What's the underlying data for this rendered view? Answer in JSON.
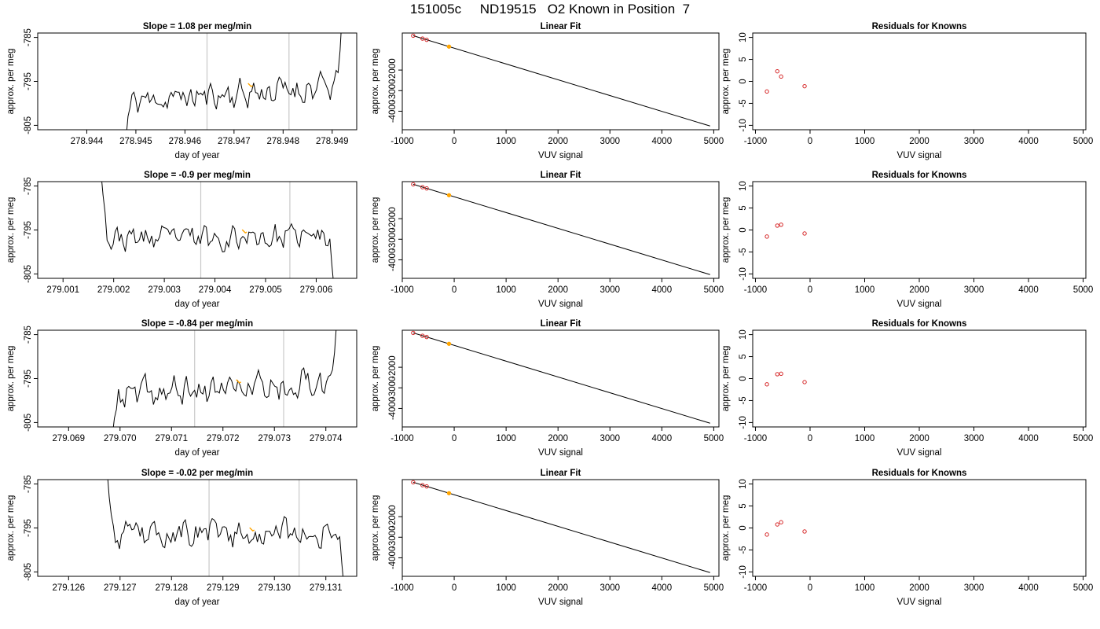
{
  "page": {
    "title": "151005c     ND19515   O2 Known in Position  7"
  },
  "colors": {
    "trace": "#000000",
    "marker": "#ffa500",
    "vline": "#c8c8c8",
    "residual": "#d62728",
    "fit_line": "#000000"
  },
  "chart_data": [
    {
      "id": "row1-timeseries",
      "type": "line",
      "title": "Slope =  1.08  per meg/min",
      "xlabel": "day of year",
      "ylabel": "approx. per meg",
      "xlim": [
        278.943,
        278.9495
      ],
      "ylim": [
        -806,
        -784
      ],
      "xticks": [
        278.944,
        278.945,
        278.946,
        278.947,
        278.948,
        278.949
      ],
      "xtick_labels": [
        "278.944",
        "278.945",
        "278.946",
        "278.947",
        "278.948",
        "278.949"
      ],
      "yticks": [
        -785,
        -795,
        -805
      ],
      "ytick_labels": [
        "-785",
        "-795",
        "-805"
      ],
      "start": 278.9448,
      "end": 278.9492,
      "step": 4e-05,
      "seed": 11,
      "head": [
        -808,
        -803,
        -801
      ],
      "tail": [
        -793,
        -788,
        -780
      ],
      "trend_start": -799.5,
      "trend_end": -796.2,
      "noise": 1.6,
      "vlines": [
        278.94645,
        278.94812
      ],
      "marker": {
        "x": 278.94735,
        "y": -795.8
      }
    },
    {
      "id": "row1-fit",
      "type": "line",
      "title": "Linear Fit",
      "xlabel": "VUV signal",
      "ylabel": "approx. per meg",
      "xlim": [
        -1000,
        5100
      ],
      "ylim": [
        -4900,
        -200
      ],
      "xticks": [
        -1000,
        0,
        1000,
        2000,
        3000,
        4000,
        5000
      ],
      "xtick_labels": [
        "-1000",
        "0",
        "1000",
        "2000",
        "3000",
        "4000",
        "5000"
      ],
      "yticks": [
        -2000,
        -3000,
        -4000
      ],
      "ytick_labels": [
        "-2000",
        "-3000",
        "-4000"
      ],
      "line": {
        "x": [
          -790,
          4930
        ],
        "y": [
          -330,
          -4720
        ]
      },
      "points": [
        {
          "x": -790,
          "y": -330
        },
        {
          "x": -610,
          "y": -470
        },
        {
          "x": -530,
          "y": -530
        }
      ],
      "marker": {
        "x": -100,
        "y": -860
      }
    },
    {
      "id": "row1-residuals",
      "type": "scatter",
      "title": "Residuals for Knowns",
      "xlabel": "VUV signal",
      "ylabel": "approx. per meg",
      "xlim": [
        -1050,
        5050
      ],
      "ylim": [
        -11,
        11
      ],
      "xticks": [
        -1000,
        0,
        1000,
        2000,
        3000,
        4000,
        5000
      ],
      "xtick_labels": [
        "-1000",
        "0",
        "1000",
        "2000",
        "3000",
        "4000",
        "5000"
      ],
      "yticks": [
        10,
        5,
        0,
        -5,
        -10
      ],
      "ytick_labels": [
        "10",
        "5",
        "0",
        "-5",
        "-10"
      ],
      "points": [
        {
          "x": -790,
          "y": -2.3
        },
        {
          "x": -600,
          "y": 2.3
        },
        {
          "x": -530,
          "y": 1.1
        },
        {
          "x": -100,
          "y": -1.1
        }
      ]
    },
    {
      "id": "row2-timeseries",
      "type": "line",
      "title": "Slope =  -0.9  per meg/min",
      "xlabel": "day of year",
      "ylabel": "approx. per meg",
      "xlim": [
        279.0005,
        279.0068
      ],
      "ylim": [
        -806,
        -784
      ],
      "xticks": [
        279.001,
        279.002,
        279.003,
        279.004,
        279.005,
        279.006
      ],
      "xtick_labels": [
        "279.001",
        "279.002",
        "279.003",
        "279.004",
        "279.005",
        "279.006"
      ],
      "yticks": [
        -785,
        -795,
        -805
      ],
      "ytick_labels": [
        "-785",
        "-795",
        "-805"
      ],
      "start": 279.00175,
      "end": 279.00635,
      "step": 4e-05,
      "seed": 23,
      "head": [
        -782,
        -787,
        -791
      ],
      "tail": [
        -797,
        -803,
        -808
      ],
      "trend_start": -797.0,
      "trend_end": -796.5,
      "noise": 1.4,
      "vlines": [
        279.00372,
        279.00548
      ],
      "marker": {
        "x": 279.0046,
        "y": -795.3
      }
    },
    {
      "id": "row2-fit",
      "type": "line",
      "title": "Linear Fit",
      "xlabel": "VUV signal",
      "ylabel": "approx. per meg",
      "xlim": [
        -1000,
        5100
      ],
      "ylim": [
        -4900,
        -200
      ],
      "xticks": [
        -1000,
        0,
        1000,
        2000,
        3000,
        4000,
        5000
      ],
      "xtick_labels": [
        "-1000",
        "0",
        "1000",
        "2000",
        "3000",
        "4000",
        "5000"
      ],
      "yticks": [
        -2000,
        -3000,
        -4000
      ],
      "ytick_labels": [
        "-2000",
        "-3000",
        "-4000"
      ],
      "line": {
        "x": [
          -790,
          4930
        ],
        "y": [
          -330,
          -4720
        ]
      },
      "points": [
        {
          "x": -790,
          "y": -330
        },
        {
          "x": -610,
          "y": -470
        },
        {
          "x": -530,
          "y": -530
        }
      ],
      "marker": {
        "x": -100,
        "y": -860
      }
    },
    {
      "id": "row2-residuals",
      "type": "scatter",
      "title": "Residuals for Knowns",
      "xlabel": "VUV signal",
      "ylabel": "approx. per meg",
      "xlim": [
        -1050,
        5050
      ],
      "ylim": [
        -11,
        11
      ],
      "xticks": [
        -1000,
        0,
        1000,
        2000,
        3000,
        4000,
        5000
      ],
      "xtick_labels": [
        "-1000",
        "0",
        "1000",
        "2000",
        "3000",
        "4000",
        "5000"
      ],
      "yticks": [
        10,
        5,
        0,
        -5,
        -10
      ],
      "ytick_labels": [
        "10",
        "5",
        "0",
        "-5",
        "-10"
      ],
      "points": [
        {
          "x": -790,
          "y": -1.5
        },
        {
          "x": -600,
          "y": 1.0
        },
        {
          "x": -530,
          "y": 1.2
        },
        {
          "x": -100,
          "y": -0.8
        }
      ]
    },
    {
      "id": "row3-timeseries",
      "type": "line",
      "title": "Slope =  -0.84  per meg/min",
      "xlabel": "day of year",
      "ylabel": "approx. per meg",
      "xlim": [
        279.0684,
        279.0746
      ],
      "ylim": [
        -806,
        -784
      ],
      "xticks": [
        279.069,
        279.07,
        279.071,
        279.072,
        279.073,
        279.074
      ],
      "xtick_labels": [
        "279.069",
        "279.070",
        "279.071",
        "279.072",
        "279.073",
        "279.074"
      ],
      "yticks": [
        -785,
        -795,
        -805
      ],
      "ytick_labels": [
        "-785",
        "-795",
        "-805"
      ],
      "start": 279.06985,
      "end": 279.0742,
      "step": 4e-05,
      "seed": 37,
      "head": [
        -808,
        -804,
        -802
      ],
      "tail": [
        -793,
        -789,
        -782
      ],
      "trend_start": -799.0,
      "trend_end": -795.5,
      "noise": 1.7,
      "vlines": [
        279.07145,
        279.07318
      ],
      "marker": {
        "x": 279.07232,
        "y": -795.6
      }
    },
    {
      "id": "row3-fit",
      "type": "line",
      "title": "Linear Fit",
      "xlabel": "VUV signal",
      "ylabel": "approx. per meg",
      "xlim": [
        -1000,
        5100
      ],
      "ylim": [
        -4900,
        -200
      ],
      "xticks": [
        -1000,
        0,
        1000,
        2000,
        3000,
        4000,
        5000
      ],
      "xtick_labels": [
        "-1000",
        "0",
        "1000",
        "2000",
        "3000",
        "4000",
        "5000"
      ],
      "yticks": [
        -2000,
        -3000,
        -4000
      ],
      "ytick_labels": [
        "-2000",
        "-3000",
        "-4000"
      ],
      "line": {
        "x": [
          -790,
          4930
        ],
        "y": [
          -330,
          -4720
        ]
      },
      "points": [
        {
          "x": -790,
          "y": -330
        },
        {
          "x": -610,
          "y": -470
        },
        {
          "x": -530,
          "y": -530
        }
      ],
      "marker": {
        "x": -100,
        "y": -860
      }
    },
    {
      "id": "row3-residuals",
      "type": "scatter",
      "title": "Residuals for Knowns",
      "xlabel": "VUV signal",
      "ylabel": "approx. per meg",
      "xlim": [
        -1050,
        5050
      ],
      "ylim": [
        -11,
        11
      ],
      "xticks": [
        -1000,
        0,
        1000,
        2000,
        3000,
        4000,
        5000
      ],
      "xtick_labels": [
        "-1000",
        "0",
        "1000",
        "2000",
        "3000",
        "4000",
        "5000"
      ],
      "yticks": [
        10,
        5,
        0,
        -5,
        -10
      ],
      "ytick_labels": [
        "10",
        "5",
        "0",
        "-5",
        "-10"
      ],
      "points": [
        {
          "x": -790,
          "y": -1.3
        },
        {
          "x": -600,
          "y": 1.0
        },
        {
          "x": -530,
          "y": 1.1
        },
        {
          "x": -100,
          "y": -0.8
        }
      ]
    },
    {
      "id": "row4-timeseries",
      "type": "line",
      "title": "Slope =  -0.02  per meg/min",
      "xlabel": "day of year",
      "ylabel": "approx. per meg",
      "xlim": [
        279.1254,
        279.1316
      ],
      "ylim": [
        -806,
        -784
      ],
      "xticks": [
        279.126,
        279.127,
        279.128,
        279.129,
        279.13,
        279.131
      ],
      "xtick_labels": [
        "279.126",
        "279.127",
        "279.128",
        "279.129",
        "279.130",
        "279.131"
      ],
      "yticks": [
        -785,
        -795,
        -805
      ],
      "ytick_labels": [
        "-785",
        "-795",
        "-805"
      ],
      "start": 279.12675,
      "end": 279.13135,
      "step": 4e-05,
      "seed": 53,
      "head": [
        -782,
        -788,
        -792
      ],
      "tail": [
        -797,
        -803,
        -808
      ],
      "trend_start": -796.8,
      "trend_end": -795.8,
      "noise": 1.5,
      "vlines": [
        279.12873,
        279.13048
      ],
      "marker": {
        "x": 279.12958,
        "y": -795.3
      }
    },
    {
      "id": "row4-fit",
      "type": "line",
      "title": "Linear Fit",
      "xlabel": "VUV signal",
      "ylabel": "approx. per meg",
      "xlim": [
        -1000,
        5100
      ],
      "ylim": [
        -4900,
        -200
      ],
      "xticks": [
        -1000,
        0,
        1000,
        2000,
        3000,
        4000,
        5000
      ],
      "xtick_labels": [
        "-1000",
        "0",
        "1000",
        "2000",
        "3000",
        "4000",
        "5000"
      ],
      "yticks": [
        -2000,
        -3000,
        -4000
      ],
      "ytick_labels": [
        "-2000",
        "-3000",
        "-4000"
      ],
      "line": {
        "x": [
          -790,
          4930
        ],
        "y": [
          -330,
          -4720
        ]
      },
      "points": [
        {
          "x": -790,
          "y": -330
        },
        {
          "x": -610,
          "y": -470
        },
        {
          "x": -530,
          "y": -530
        }
      ],
      "marker": {
        "x": -100,
        "y": -860
      }
    },
    {
      "id": "row4-residuals",
      "type": "scatter",
      "title": "Residuals for Knowns",
      "xlabel": "VUV signal",
      "ylabel": "approx. per meg",
      "xlim": [
        -1050,
        5050
      ],
      "ylim": [
        -11,
        11
      ],
      "xticks": [
        -1000,
        0,
        1000,
        2000,
        3000,
        4000,
        5000
      ],
      "xtick_labels": [
        "-1000",
        "0",
        "1000",
        "2000",
        "3000",
        "4000",
        "5000"
      ],
      "yticks": [
        10,
        5,
        0,
        -5,
        -10
      ],
      "ytick_labels": [
        "10",
        "5",
        "0",
        "-5",
        "-10"
      ],
      "points": [
        {
          "x": -790,
          "y": -1.5
        },
        {
          "x": -600,
          "y": 0.8
        },
        {
          "x": -530,
          "y": 1.3
        },
        {
          "x": -100,
          "y": -0.8
        }
      ]
    }
  ]
}
